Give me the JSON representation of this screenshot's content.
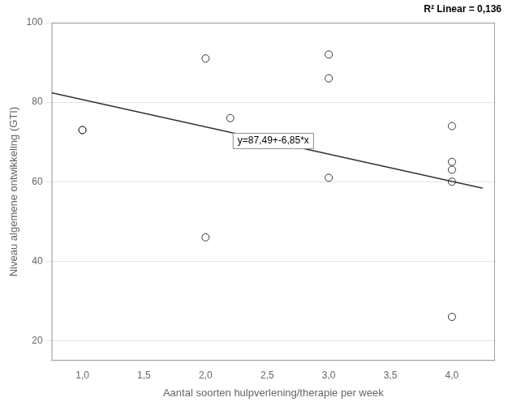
{
  "chart_data": {
    "type": "scatter",
    "x_label": "Aantal soorten hulpverlening/therapie per week",
    "y_label": "Niveau algemene ontwikkeling (GTI)",
    "series": [
      {
        "type": "scatter",
        "marker": "circle",
        "color": "#333333",
        "x": [
          1.0,
          1.0,
          2.0,
          2.0,
          2.2,
          3.0,
          3.0,
          3.0,
          4.0,
          4.0,
          4.0,
          4.0,
          4.0
        ],
        "values": [
          73,
          73,
          91,
          46,
          76,
          92,
          86,
          61,
          74,
          65,
          63,
          60,
          26
        ]
      },
      {
        "type": "line",
        "line_style": "solid",
        "color": "#333333",
        "x": [
          0.75,
          4.25
        ],
        "values": [
          82.3525,
          58.3775
        ]
      }
    ],
    "xlim": [
      0.75,
      4.35
    ],
    "xticks": [
      {
        "value": 1.0,
        "label": "1,0"
      },
      {
        "value": 1.5,
        "label": "1,5"
      },
      {
        "value": 2.0,
        "label": "2,0"
      },
      {
        "value": 2.5,
        "label": "2,5"
      },
      {
        "value": 3.0,
        "label": "3,0"
      },
      {
        "value": 3.5,
        "label": "3,5"
      },
      {
        "value": 4.0,
        "label": "4,0"
      }
    ],
    "ylim": [
      15,
      100
    ],
    "yticks": [
      20,
      40,
      60,
      80,
      100
    ],
    "grid": "y",
    "annotations": [
      "y=87,49+-6,85*x",
      "R² Linear = 0,136"
    ]
  }
}
